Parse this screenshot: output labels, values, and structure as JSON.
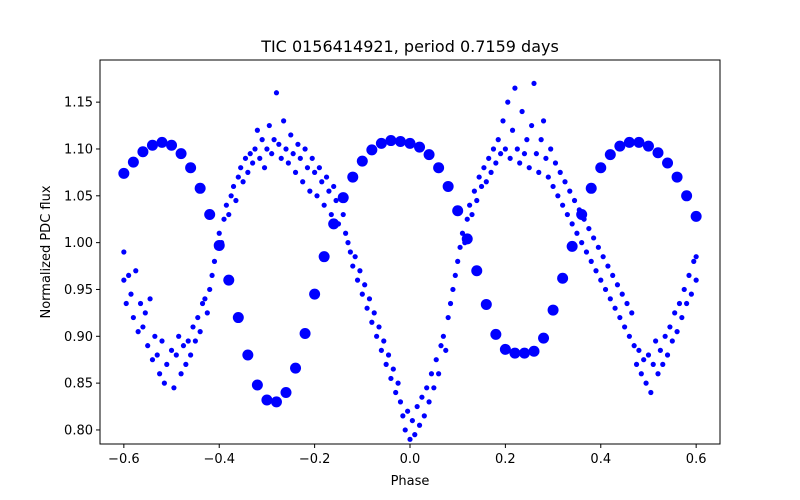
{
  "chart_data": {
    "type": "scatter",
    "title": "TIC 0156414921, period 0.7159 days",
    "xlabel": "Phase",
    "ylabel": "Normalized PDC flux",
    "xlim": [
      -0.65,
      0.65
    ],
    "ylim": [
      0.785,
      1.195
    ],
    "x_ticks": [
      -0.6,
      -0.4,
      -0.2,
      0.0,
      0.2,
      0.4,
      0.6
    ],
    "x_tick_labels": [
      "−0.6",
      "−0.4",
      "−0.2",
      "0.0",
      "0.2",
      "0.4",
      "0.6"
    ],
    "y_ticks": [
      0.8,
      0.85,
      0.9,
      0.95,
      1.0,
      1.05,
      1.1,
      1.15
    ],
    "y_tick_labels": [
      "0.80",
      "0.85",
      "0.90",
      "0.95",
      "1.00",
      "1.05",
      "1.10",
      "1.15"
    ],
    "grid": false,
    "marker_color": "#0000ff",
    "series": [
      {
        "points": [
          [
            -0.6,
            1.074
          ],
          [
            -0.58,
            1.086
          ],
          [
            -0.56,
            1.097
          ],
          [
            -0.54,
            1.104
          ],
          [
            -0.52,
            1.107
          ],
          [
            -0.5,
            1.104
          ],
          [
            -0.48,
            1.095
          ],
          [
            -0.46,
            1.08
          ],
          [
            -0.44,
            1.058
          ],
          [
            -0.42,
            1.03
          ],
          [
            -0.4,
            0.997
          ],
          [
            -0.38,
            0.96
          ],
          [
            -0.36,
            0.92
          ],
          [
            -0.34,
            0.88
          ],
          [
            -0.32,
            0.848
          ],
          [
            -0.3,
            0.832
          ],
          [
            -0.28,
            0.83
          ],
          [
            -0.26,
            0.84
          ],
          [
            -0.24,
            0.866
          ],
          [
            -0.22,
            0.903
          ],
          [
            -0.2,
            0.945
          ],
          [
            -0.18,
            0.985
          ],
          [
            -0.16,
            1.02
          ],
          [
            -0.14,
            1.048
          ],
          [
            -0.12,
            1.07
          ],
          [
            -0.1,
            1.087
          ],
          [
            -0.08,
            1.099
          ],
          [
            -0.06,
            1.106
          ],
          [
            -0.04,
            1.109
          ],
          [
            -0.02,
            1.108
          ],
          [
            0.0,
            1.106
          ],
          [
            0.02,
            1.102
          ],
          [
            0.04,
            1.094
          ],
          [
            0.06,
            1.08
          ],
          [
            0.08,
            1.06
          ],
          [
            0.1,
            1.034
          ],
          [
            0.12,
            1.004
          ],
          [
            0.14,
            0.97
          ],
          [
            0.16,
            0.934
          ],
          [
            0.18,
            0.902
          ],
          [
            0.2,
            0.886
          ],
          [
            0.22,
            0.882
          ],
          [
            0.24,
            0.882
          ],
          [
            0.26,
            0.884
          ],
          [
            0.28,
            0.898
          ],
          [
            0.3,
            0.928
          ],
          [
            0.32,
            0.962
          ],
          [
            0.34,
            0.996
          ],
          [
            0.36,
            1.03
          ],
          [
            0.38,
            1.058
          ],
          [
            0.4,
            1.08
          ],
          [
            0.42,
            1.094
          ],
          [
            0.44,
            1.103
          ],
          [
            0.46,
            1.107
          ],
          [
            0.48,
            1.107
          ],
          [
            0.5,
            1.103
          ],
          [
            0.52,
            1.096
          ],
          [
            0.54,
            1.085
          ],
          [
            0.56,
            1.07
          ],
          [
            0.58,
            1.05
          ],
          [
            0.6,
            1.028
          ]
        ]
      },
      {
        "points": [
          [
            -0.6,
            0.99
          ],
          [
            -0.6,
            0.96
          ],
          [
            -0.595,
            0.935
          ],
          [
            -0.59,
            0.965
          ],
          [
            -0.585,
            0.945
          ],
          [
            -0.58,
            0.92
          ],
          [
            -0.575,
            0.97
          ],
          [
            -0.57,
            0.905
          ],
          [
            -0.565,
            0.935
          ],
          [
            -0.56,
            0.91
          ],
          [
            -0.555,
            0.925
          ],
          [
            -0.55,
            0.89
          ],
          [
            -0.545,
            0.94
          ],
          [
            -0.54,
            0.875
          ],
          [
            -0.535,
            0.9
          ],
          [
            -0.53,
            0.88
          ],
          [
            -0.525,
            0.86
          ],
          [
            -0.52,
            0.895
          ],
          [
            -0.515,
            0.85
          ],
          [
            -0.51,
            0.87
          ],
          [
            -0.5,
            0.885
          ],
          [
            -0.495,
            0.845
          ],
          [
            -0.49,
            0.88
          ],
          [
            -0.485,
            0.9
          ],
          [
            -0.48,
            0.86
          ],
          [
            -0.475,
            0.89
          ],
          [
            -0.47,
            0.87
          ],
          [
            -0.465,
            0.895
          ],
          [
            -0.46,
            0.88
          ],
          [
            -0.455,
            0.91
          ],
          [
            -0.45,
            0.895
          ],
          [
            -0.445,
            0.92
          ],
          [
            -0.44,
            0.905
          ],
          [
            -0.435,
            0.935
          ],
          [
            -0.43,
            0.94
          ],
          [
            -0.425,
            0.925
          ],
          [
            -0.42,
            0.95
          ],
          [
            -0.415,
            0.965
          ],
          [
            -0.41,
            0.98
          ],
          [
            -0.405,
            0.995
          ],
          [
            -0.4,
            1.01
          ],
          [
            -0.395,
            1.0
          ],
          [
            -0.39,
            1.025
          ],
          [
            -0.385,
            1.04
          ],
          [
            -0.38,
            1.03
          ],
          [
            -0.375,
            1.05
          ],
          [
            -0.37,
            1.06
          ],
          [
            -0.365,
            1.045
          ],
          [
            -0.36,
            1.07
          ],
          [
            -0.355,
            1.08
          ],
          [
            -0.35,
            1.065
          ],
          [
            -0.345,
            1.09
          ],
          [
            -0.34,
            1.075
          ],
          [
            -0.335,
            1.095
          ],
          [
            -0.33,
            1.085
          ],
          [
            -0.325,
            1.1
          ],
          [
            -0.32,
            1.12
          ],
          [
            -0.315,
            1.09
          ],
          [
            -0.31,
            1.11
          ],
          [
            -0.305,
            1.08
          ],
          [
            -0.3,
            1.1
          ],
          [
            -0.295,
            1.125
          ],
          [
            -0.29,
            1.095
          ],
          [
            -0.285,
            1.11
          ],
          [
            -0.28,
            1.16
          ],
          [
            -0.275,
            1.105
          ],
          [
            -0.27,
            1.09
          ],
          [
            -0.265,
            1.13
          ],
          [
            -0.26,
            1.1
          ],
          [
            -0.255,
            1.085
          ],
          [
            -0.25,
            1.115
          ],
          [
            -0.245,
            1.095
          ],
          [
            -0.24,
            1.075
          ],
          [
            -0.235,
            1.105
          ],
          [
            -0.23,
            1.09
          ],
          [
            -0.225,
            1.065
          ],
          [
            -0.22,
            1.1
          ],
          [
            -0.215,
            1.08
          ],
          [
            -0.21,
            1.055
          ],
          [
            -0.205,
            1.09
          ],
          [
            -0.2,
            1.075
          ],
          [
            -0.195,
            1.05
          ],
          [
            -0.19,
            1.08
          ],
          [
            -0.185,
            1.065
          ],
          [
            -0.18,
            1.04
          ],
          [
            -0.175,
            1.07
          ],
          [
            -0.17,
            1.055
          ],
          [
            -0.165,
            1.03
          ],
          [
            -0.16,
            1.06
          ],
          [
            -0.155,
            1.045
          ],
          [
            -0.15,
            1.02
          ],
          [
            -0.145,
            1.05
          ],
          [
            -0.14,
            1.03
          ],
          [
            -0.135,
            1.01
          ],
          [
            -0.13,
            1.0
          ],
          [
            -0.125,
            0.99
          ],
          [
            -0.12,
            0.975
          ],
          [
            -0.115,
            0.985
          ],
          [
            -0.11,
            0.96
          ],
          [
            -0.105,
            0.97
          ],
          [
            -0.1,
            0.945
          ],
          [
            -0.095,
            0.955
          ],
          [
            -0.09,
            0.93
          ],
          [
            -0.085,
            0.94
          ],
          [
            -0.08,
            0.915
          ],
          [
            -0.075,
            0.925
          ],
          [
            -0.07,
            0.9
          ],
          [
            -0.065,
            0.91
          ],
          [
            -0.06,
            0.885
          ],
          [
            -0.055,
            0.895
          ],
          [
            -0.05,
            0.87
          ],
          [
            -0.045,
            0.88
          ],
          [
            -0.04,
            0.855
          ],
          [
            -0.035,
            0.865
          ],
          [
            -0.03,
            0.84
          ],
          [
            -0.025,
            0.85
          ],
          [
            -0.02,
            0.83
          ],
          [
            -0.015,
            0.815
          ],
          [
            -0.01,
            0.8
          ],
          [
            -0.005,
            0.82
          ],
          [
            0.0,
            0.79
          ],
          [
            0.005,
            0.81
          ],
          [
            0.01,
            0.795
          ],
          [
            0.015,
            0.825
          ],
          [
            0.02,
            0.805
          ],
          [
            0.025,
            0.835
          ],
          [
            0.03,
            0.815
          ],
          [
            0.035,
            0.845
          ],
          [
            0.04,
            0.83
          ],
          [
            0.045,
            0.86
          ],
          [
            0.05,
            0.845
          ],
          [
            0.055,
            0.875
          ],
          [
            0.06,
            0.86
          ],
          [
            0.065,
            0.89
          ],
          [
            0.07,
            0.9
          ],
          [
            0.075,
            0.885
          ],
          [
            0.08,
            0.92
          ],
          [
            0.085,
            0.935
          ],
          [
            0.09,
            0.95
          ],
          [
            0.095,
            0.965
          ],
          [
            0.1,
            0.98
          ],
          [
            0.105,
            0.995
          ],
          [
            0.11,
            1.01
          ],
          [
            0.115,
            1.0
          ],
          [
            0.12,
            1.025
          ],
          [
            0.125,
            1.04
          ],
          [
            0.13,
            1.03
          ],
          [
            0.135,
            1.055
          ],
          [
            0.14,
            1.045
          ],
          [
            0.145,
            1.07
          ],
          [
            0.15,
            1.06
          ],
          [
            0.155,
            1.08
          ],
          [
            0.16,
            1.065
          ],
          [
            0.165,
            1.09
          ],
          [
            0.17,
            1.075
          ],
          [
            0.175,
            1.1
          ],
          [
            0.18,
            1.085
          ],
          [
            0.185,
            1.11
          ],
          [
            0.19,
            1.095
          ],
          [
            0.195,
            1.13
          ],
          [
            0.2,
            1.1
          ],
          [
            0.205,
            1.15
          ],
          [
            0.21,
            1.09
          ],
          [
            0.215,
            1.12
          ],
          [
            0.22,
            1.165
          ],
          [
            0.225,
            1.1
          ],
          [
            0.23,
            1.085
          ],
          [
            0.235,
            1.14
          ],
          [
            0.24,
            1.095
          ],
          [
            0.245,
            1.11
          ],
          [
            0.25,
            1.08
          ],
          [
            0.255,
            1.125
          ],
          [
            0.26,
            1.17
          ],
          [
            0.265,
            1.095
          ],
          [
            0.27,
            1.075
          ],
          [
            0.275,
            1.11
          ],
          [
            0.28,
            1.13
          ],
          [
            0.285,
            1.09
          ],
          [
            0.29,
            1.07
          ],
          [
            0.295,
            1.1
          ],
          [
            0.3,
            1.06
          ],
          [
            0.305,
            1.085
          ],
          [
            0.31,
            1.05
          ],
          [
            0.315,
            1.075
          ],
          [
            0.32,
            1.04
          ],
          [
            0.325,
            1.065
          ],
          [
            0.33,
            1.03
          ],
          [
            0.335,
            1.055
          ],
          [
            0.34,
            1.02
          ],
          [
            0.345,
            1.045
          ],
          [
            0.35,
            1.01
          ],
          [
            0.355,
            1.035
          ],
          [
            0.36,
            1.0
          ],
          [
            0.365,
            1.025
          ],
          [
            0.37,
            0.99
          ],
          [
            0.375,
            1.015
          ],
          [
            0.38,
            0.98
          ],
          [
            0.385,
            1.005
          ],
          [
            0.39,
            0.97
          ],
          [
            0.395,
            0.995
          ],
          [
            0.4,
            0.96
          ],
          [
            0.405,
            0.985
          ],
          [
            0.41,
            0.95
          ],
          [
            0.415,
            0.975
          ],
          [
            0.42,
            0.94
          ],
          [
            0.425,
            0.965
          ],
          [
            0.43,
            0.93
          ],
          [
            0.435,
            0.955
          ],
          [
            0.44,
            0.92
          ],
          [
            0.445,
            0.945
          ],
          [
            0.45,
            0.91
          ],
          [
            0.455,
            0.935
          ],
          [
            0.46,
            0.9
          ],
          [
            0.465,
            0.925
          ],
          [
            0.47,
            0.89
          ],
          [
            0.475,
            0.87
          ],
          [
            0.48,
            0.885
          ],
          [
            0.485,
            0.86
          ],
          [
            0.49,
            0.875
          ],
          [
            0.495,
            0.85
          ],
          [
            0.5,
            0.88
          ],
          [
            0.505,
            0.84
          ],
          [
            0.51,
            0.87
          ],
          [
            0.515,
            0.895
          ],
          [
            0.52,
            0.86
          ],
          [
            0.525,
            0.885
          ],
          [
            0.53,
            0.87
          ],
          [
            0.535,
            0.9
          ],
          [
            0.54,
            0.88
          ],
          [
            0.545,
            0.91
          ],
          [
            0.55,
            0.895
          ],
          [
            0.555,
            0.925
          ],
          [
            0.56,
            0.905
          ],
          [
            0.565,
            0.935
          ],
          [
            0.57,
            0.92
          ],
          [
            0.575,
            0.95
          ],
          [
            0.58,
            0.935
          ],
          [
            0.585,
            0.965
          ],
          [
            0.59,
            0.945
          ],
          [
            0.595,
            0.98
          ],
          [
            0.6,
            0.96
          ],
          [
            0.6,
            0.985
          ]
        ]
      }
    ]
  }
}
